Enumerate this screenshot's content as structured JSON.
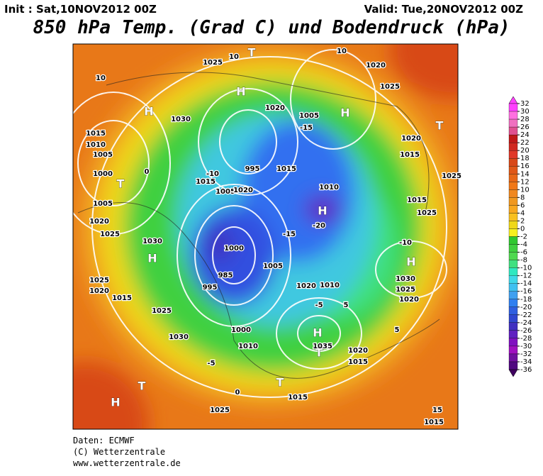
{
  "header": {
    "init": "Init : Sat,10NOV2012 00Z",
    "valid": "Valid: Tue,20NOV2012 00Z",
    "title": "850 hPa Temp. (Grad C) und Bodendruck (hPa)"
  },
  "colorbar": {
    "ticks": [
      32,
      30,
      28,
      26,
      24,
      22,
      20,
      18,
      16,
      14,
      12,
      10,
      8,
      6,
      4,
      2,
      0,
      -2,
      -4,
      -6,
      -8,
      -10,
      -12,
      -14,
      -16,
      -18,
      -20,
      -22,
      -24,
      -26,
      -28,
      -30,
      -32,
      -34,
      -36
    ],
    "colors": [
      "#ff40ff",
      "#ff70e0",
      "#f070c0",
      "#e05090",
      "#c01818",
      "#d02820",
      "#e03828",
      "#d84818",
      "#e05818",
      "#e86818",
      "#f07818",
      "#f08820",
      "#f09820",
      "#f8a820",
      "#f8c020",
      "#f0d818",
      "#f8f020",
      "#30c830",
      "#40d040",
      "#50d850",
      "#40e080",
      "#30e8c0",
      "#40d8e8",
      "#40c0f0",
      "#40a0f0",
      "#3080f0",
      "#3060e0",
      "#3048d0",
      "#4030c0",
      "#6020c0",
      "#8010c0",
      "#a010c0",
      "#7010a0",
      "#500880"
    ]
  },
  "map": {
    "labels": [
      "1025",
      "H",
      "H",
      "1030",
      "1015",
      "1010",
      "1005",
      "1000",
      "T",
      "1005",
      "1020",
      "1025",
      "1030",
      "H",
      "1025",
      "1020",
      "1015",
      "1025",
      "1030",
      "H",
      "T",
      "1025",
      "1015",
      "1015",
      "15",
      "T",
      "H",
      "1035",
      "1020",
      "1015",
      "T",
      "-10",
      "H",
      "1030",
      "1025",
      "1020",
      "1015",
      "1025",
      "-15",
      "1010",
      "1015",
      "-15",
      "1020",
      "H",
      "1005",
      "H",
      "1020",
      "1025",
      "10",
      "T",
      "10",
      "10",
      "1020",
      "1015",
      "T",
      "1025",
      "1000",
      "1010",
      "995",
      "985",
      "1000",
      "995",
      "1005",
      "1015",
      "1020",
      "-20",
      "1005",
      "1010",
      "1020",
      "5",
      "-5",
      "-5",
      "0",
      "0",
      "5",
      "-10"
    ]
  },
  "footer": {
    "source": "Daten: ECMWF",
    "copyright": "(C) Wetterzentrale",
    "url": "www.wetterzentrale.de"
  }
}
